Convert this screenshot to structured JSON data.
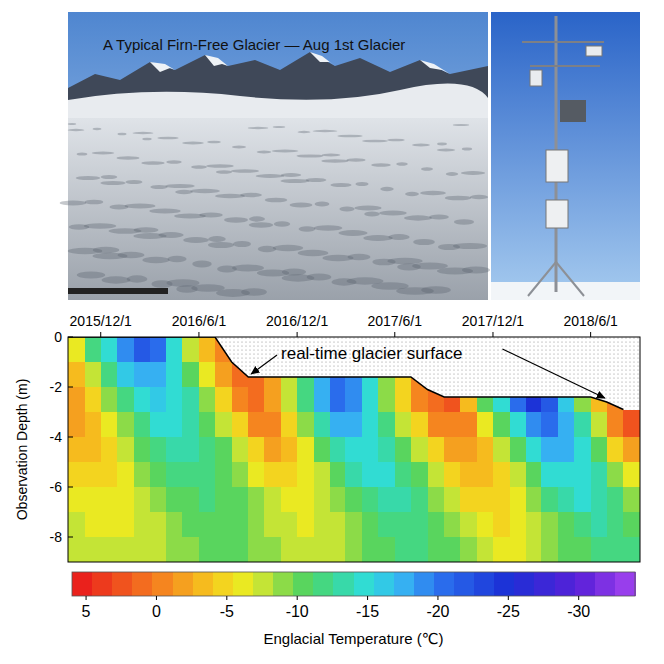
{
  "photo": {
    "caption": "A Typical Firn-Free Glacier — Aug 1st Glacier"
  },
  "chart_data": {
    "type": "heatmap",
    "x": [
      "2015/10/1",
      "2015/11/1",
      "2015/12/1",
      "2016/1/1",
      "2016/2/1",
      "2016/3/1",
      "2016/4/1",
      "2016/5/1",
      "2016/6/1",
      "2016/7/1",
      "2016/8/1",
      "2016/9/1",
      "2016/10/1",
      "2016/11/1",
      "2016/12/1",
      "2017/1/1",
      "2017/2/1",
      "2017/3/1",
      "2017/4/1",
      "2017/5/1",
      "2017/6/1",
      "2017/7/1",
      "2017/8/1",
      "2017/9/1",
      "2017/10/1",
      "2017/11/1",
      "2017/12/1",
      "2018/1/1",
      "2018/2/1",
      "2018/3/1",
      "2018/4/1",
      "2018/5/1",
      "2018/6/1",
      "2018/7/1",
      "2018/8/1"
    ],
    "xlim": [
      "2015/10/1",
      "2018/9/1"
    ],
    "xticks": [
      "2015/12/1",
      "2016/6/1",
      "2016/12/1",
      "2017/6/1",
      "2017/12/1",
      "2018/6/1"
    ],
    "ylabel": "Observation Depth (m)",
    "depths": [
      -0.5,
      -1.5,
      -2.5,
      -3.5,
      -4.5,
      -5.5,
      -6.5,
      -7.5,
      -8.5
    ],
    "ylim": [
      -9,
      0
    ],
    "yticks": [
      0,
      -2,
      -4,
      -6,
      -8
    ],
    "z": [
      [
        -6,
        -3,
        -1.5,
        -2,
        -3.5,
        -5,
        -6,
        -7,
        -7.5
      ],
      [
        -12,
        -8,
        -5,
        -3.5,
        -3.5,
        -4.5,
        -5.5,
        -6.5,
        -7
      ],
      [
        -15,
        -12,
        -9,
        -6.5,
        -5,
        -5,
        -5.5,
        -6,
        -7
      ],
      [
        -19,
        -16,
        -12,
        -9,
        -7.5,
        -6.5,
        -6.5,
        -6.5,
        -7
      ],
      [
        -22,
        -18,
        -15,
        -12,
        -10,
        -8.5,
        -7.5,
        -7,
        -7.5
      ],
      [
        -20,
        -18,
        -16,
        -14,
        -12,
        -10,
        -9,
        -8,
        -8
      ],
      [
        -14,
        -15,
        -15,
        -14,
        -13,
        -11.5,
        -10,
        -9,
        -8.5
      ],
      [
        -8,
        -11,
        -13,
        -13,
        -13,
        -12,
        -11,
        -10,
        -9
      ],
      [
        -3,
        -6,
        -9,
        -11,
        -12,
        -12,
        -11.5,
        -10.5,
        -10
      ],
      [
        0,
        -2,
        -5,
        -8,
        -10,
        -11,
        -11,
        -10.5,
        -10
      ],
      [
        null,
        1,
        -1,
        -4,
        -7,
        -9,
        -10,
        -10,
        -10
      ],
      [
        null,
        null,
        1,
        -1,
        -4,
        -6.5,
        -8.5,
        -9,
        -9.5
      ],
      [
        null,
        null,
        -2,
        -1,
        -2.5,
        -5,
        -7,
        -8,
        -8.5
      ],
      [
        null,
        null,
        -8,
        -5,
        -3.5,
        -4.5,
        -6,
        -7,
        -8
      ],
      [
        null,
        null,
        -12,
        -9,
        -6.5,
        -5.5,
        -5.5,
        -6.5,
        -7.5
      ],
      [
        null,
        null,
        -17,
        -13,
        -10,
        -8,
        -7,
        -7,
        -7.5
      ],
      [
        null,
        null,
        -21,
        -17,
        -13,
        -10.5,
        -9,
        -8,
        -8
      ],
      [
        null,
        null,
        -19,
        -17,
        -15,
        -13,
        -11,
        -9.5,
        -9
      ],
      [
        null,
        null,
        -14,
        -15,
        -15,
        -14,
        -12.5,
        -11,
        -10
      ],
      [
        null,
        null,
        -9,
        -12,
        -13.5,
        -14,
        -13,
        -12,
        -11
      ],
      [
        null,
        null,
        -4,
        -8,
        -11,
        -12.5,
        -13,
        -12,
        -11.5
      ],
      [
        null,
        null,
        0,
        -4,
        -8,
        -10.5,
        -12,
        -12,
        -11.5
      ],
      [
        null,
        null,
        1,
        -1,
        -4,
        -7,
        -9.5,
        -11,
        -11
      ],
      [
        null,
        null,
        2,
        0,
        -2,
        -4.5,
        -7,
        -9,
        -10
      ],
      [
        null,
        null,
        -3,
        -1,
        -1.5,
        -3,
        -5,
        -7,
        -8.5
      ],
      [
        null,
        null,
        -10,
        -6,
        -3.5,
        -3,
        -4,
        -5.5,
        -7
      ],
      [
        null,
        null,
        -15,
        -11,
        -7,
        -5,
        -4.5,
        -5,
        -6.5
      ],
      [
        null,
        null,
        -20,
        -15,
        -11,
        -8,
        -6.5,
        -6,
        -6.5
      ],
      [
        null,
        null,
        -24,
        -19,
        -15,
        -11,
        -9,
        -7.5,
        -7
      ],
      [
        null,
        null,
        -22,
        -20,
        -17,
        -14,
        -11.5,
        -9.5,
        -8.5
      ],
      [
        null,
        null,
        -16,
        -17,
        -17,
        -15,
        -13,
        -11,
        -10
      ],
      [
        null,
        null,
        -9,
        -13,
        -15,
        -15,
        -14,
        -12.5,
        -11
      ],
      [
        null,
        null,
        -3,
        -8,
        -11,
        -13,
        -13.5,
        -13,
        -12
      ],
      [
        null,
        null,
        null,
        0,
        -5,
        -9,
        -11.5,
        -12.5,
        -12
      ],
      [
        null,
        null,
        null,
        2,
        -2,
        -6,
        -9,
        -11,
        -11.5
      ]
    ],
    "surface": [
      0,
      0,
      0,
      0,
      0,
      0,
      0,
      0,
      0,
      0,
      -1.0,
      -1.6,
      -1.6,
      -1.6,
      -1.6,
      -1.6,
      -1.6,
      -1.6,
      -1.6,
      -1.6,
      -1.6,
      -1.6,
      -2.1,
      -2.4,
      -2.4,
      -2.4,
      -2.4,
      -2.4,
      -2.4,
      -2.4,
      -2.4,
      -2.4,
      -2.4,
      -2.6,
      -2.9
    ],
    "annotation": "real-time glacier surface",
    "colorbar": {
      "range": [
        6,
        -34
      ],
      "ticks": [
        5,
        0,
        -5,
        -10,
        -15,
        -20,
        -25,
        -30
      ],
      "label": "Englacial Temperature (℃)"
    }
  }
}
